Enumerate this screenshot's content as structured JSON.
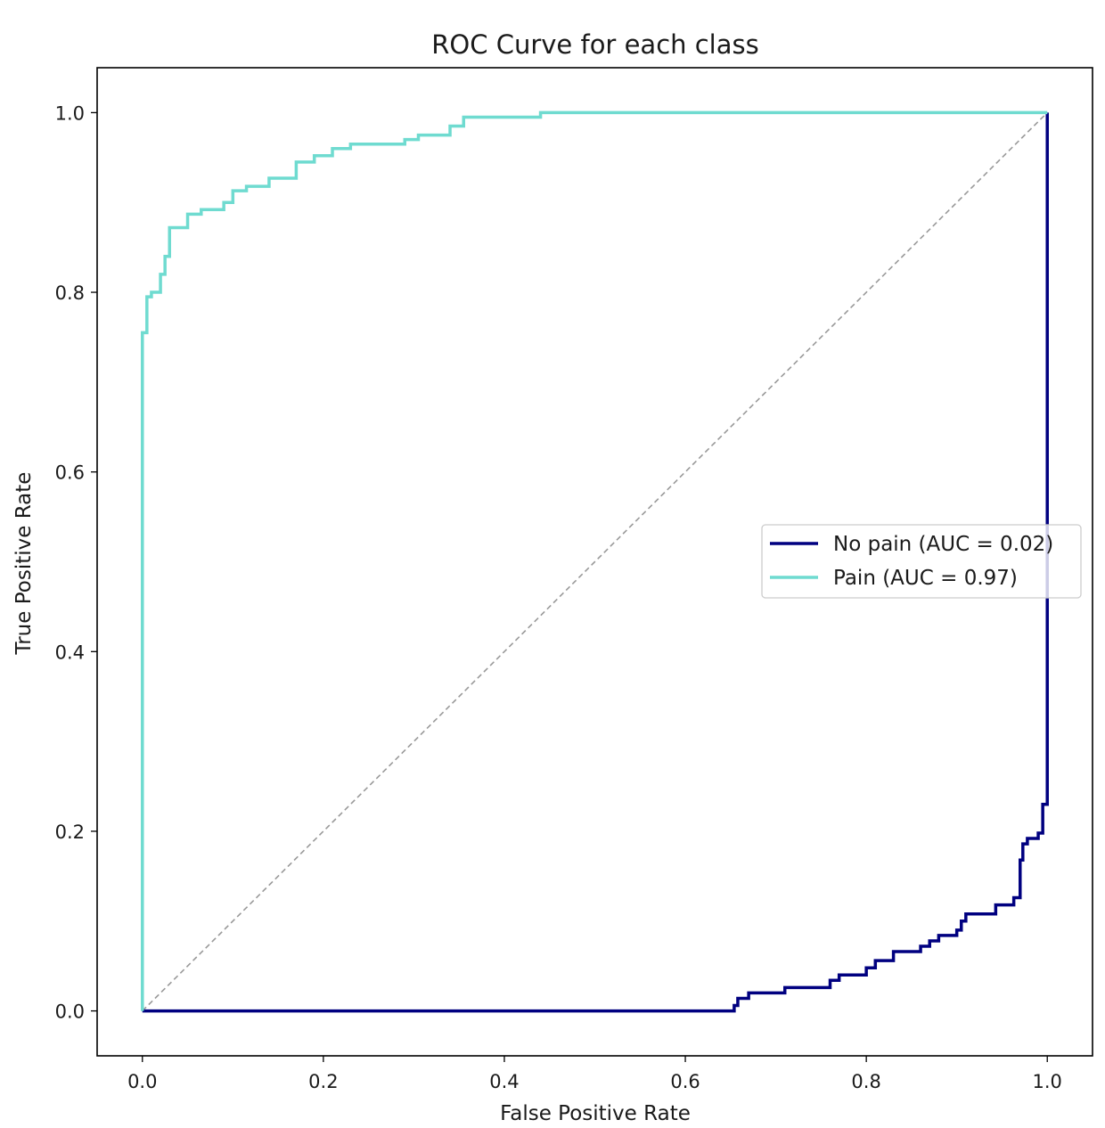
{
  "chart_data": {
    "type": "line",
    "title": "ROC Curve for each class",
    "xlabel": "False Positive Rate",
    "ylabel": "True Positive Rate",
    "xlim": [
      -0.05,
      1.05
    ],
    "ylim": [
      -0.05,
      1.05
    ],
    "xticks": [
      0.0,
      0.2,
      0.4,
      0.6,
      0.8,
      1.0
    ],
    "yticks": [
      0.0,
      0.2,
      0.4,
      0.6,
      0.8,
      1.0
    ],
    "xtick_labels": [
      "0.0",
      "0.2",
      "0.4",
      "0.6",
      "0.8",
      "1.0"
    ],
    "ytick_labels": [
      "0.0",
      "0.2",
      "0.4",
      "0.6",
      "0.8",
      "1.0"
    ],
    "grid": false,
    "legend_position": "center-right",
    "series": [
      {
        "name": "No pain (AUC = 0.02)",
        "color": "#000080",
        "style": "solid",
        "x": [
          0.0,
          0.654,
          0.654,
          0.658,
          0.658,
          0.67,
          0.67,
          0.71,
          0.71,
          0.76,
          0.76,
          0.77,
          0.77,
          0.8,
          0.8,
          0.81,
          0.81,
          0.83,
          0.83,
          0.86,
          0.86,
          0.87,
          0.87,
          0.88,
          0.88,
          0.9,
          0.9,
          0.905,
          0.905,
          0.91,
          0.91,
          0.943,
          0.943,
          0.963,
          0.963,
          0.97,
          0.97,
          0.973,
          0.973,
          0.978,
          0.978,
          0.99,
          0.99,
          0.995,
          0.995,
          1.0,
          1.0
        ],
        "y": [
          0.0,
          0.0,
          0.006,
          0.006,
          0.014,
          0.014,
          0.02,
          0.02,
          0.026,
          0.026,
          0.034,
          0.034,
          0.04,
          0.04,
          0.048,
          0.048,
          0.056,
          0.056,
          0.066,
          0.066,
          0.072,
          0.072,
          0.078,
          0.078,
          0.084,
          0.084,
          0.09,
          0.09,
          0.1,
          0.1,
          0.108,
          0.108,
          0.118,
          0.118,
          0.126,
          0.126,
          0.168,
          0.168,
          0.186,
          0.186,
          0.192,
          0.192,
          0.198,
          0.198,
          0.23,
          0.23,
          1.0
        ]
      },
      {
        "name": "Pain (AUC = 0.97)",
        "color": "#6fdbd0",
        "style": "solid",
        "x": [
          0.0,
          0.0,
          0.005,
          0.005,
          0.01,
          0.01,
          0.02,
          0.02,
          0.025,
          0.025,
          0.03,
          0.03,
          0.05,
          0.05,
          0.065,
          0.065,
          0.09,
          0.09,
          0.1,
          0.1,
          0.115,
          0.115,
          0.14,
          0.14,
          0.17,
          0.17,
          0.19,
          0.19,
          0.21,
          0.21,
          0.23,
          0.23,
          0.29,
          0.29,
          0.305,
          0.305,
          0.34,
          0.34,
          0.355,
          0.355,
          0.44,
          0.44,
          1.0
        ],
        "y": [
          0.0,
          0.755,
          0.755,
          0.795,
          0.795,
          0.8,
          0.8,
          0.82,
          0.82,
          0.84,
          0.84,
          0.872,
          0.872,
          0.887,
          0.887,
          0.892,
          0.892,
          0.9,
          0.9,
          0.913,
          0.913,
          0.918,
          0.918,
          0.927,
          0.927,
          0.945,
          0.945,
          0.952,
          0.952,
          0.96,
          0.96,
          0.965,
          0.965,
          0.97,
          0.97,
          0.975,
          0.975,
          0.985,
          0.985,
          0.995,
          0.995,
          1.0,
          1.0
        ]
      },
      {
        "role": "chance diagonal",
        "color": "#999999",
        "style": "dashed",
        "x": [
          0.0,
          1.0
        ],
        "y": [
          0.0,
          1.0
        ]
      }
    ]
  }
}
